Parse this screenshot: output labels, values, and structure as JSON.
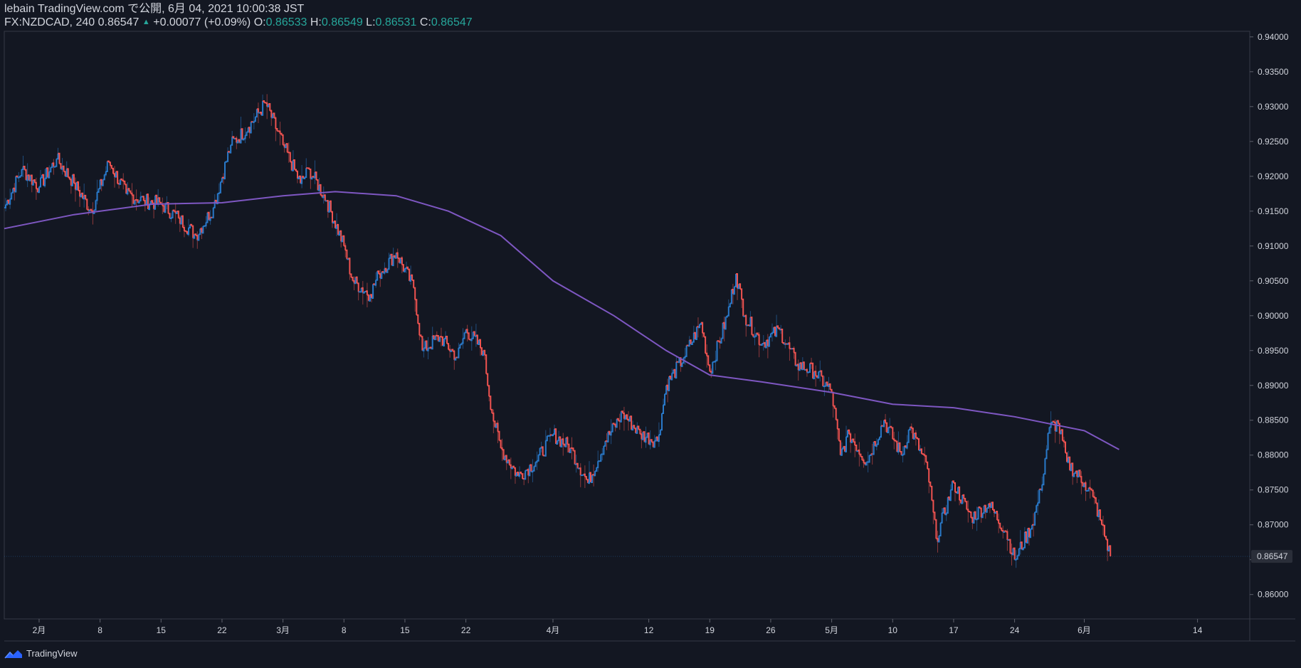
{
  "header": {
    "publisher": "lebain TradingView.com で公開, 6月 04, 2021 10:00:38 JST",
    "symbol": "FX:NZDCAD, 240",
    "last": "0.86547",
    "change": "+0.00077 (+0.09%)",
    "o_label": "O:",
    "o_value": "0.86533",
    "h_label": "H:",
    "h_value": "0.86549",
    "l_label": "L:",
    "l_value": "0.86531",
    "c_label": "C:",
    "c_value": "0.86547"
  },
  "footer": {
    "brand": "TradingView"
  },
  "colors": {
    "background": "#131722",
    "up": "#2979c9",
    "down": "#ef5350",
    "ma": "#7e57c2",
    "change_text": "#26a69a",
    "grid": "#2a2e39"
  },
  "chart_data": {
    "type": "line",
    "y_axis": {
      "range": [
        0.8565,
        0.9408
      ],
      "ticks": [
        0.86,
        0.865,
        0.87,
        0.875,
        0.88,
        0.885,
        0.89,
        0.895,
        0.9,
        0.905,
        0.91,
        0.915,
        0.92,
        0.925,
        0.93,
        0.935,
        0.94
      ],
      "tick_labels": [
        "0.86000",
        "0.86500",
        "0.87000",
        "0.87500",
        "0.88000",
        "0.88500",
        "0.89000",
        "0.89500",
        "0.90000",
        "0.90500",
        "0.91000",
        "0.91500",
        "0.92000",
        "0.92500",
        "0.93000",
        "0.93500",
        "0.94000"
      ],
      "current_price": 0.86547,
      "current_label": "0.86547"
    },
    "x_axis": {
      "range": [
        "2021-01-28",
        "2021-06-20"
      ],
      "ticks": [
        {
          "date": "2021-02-01",
          "label": "2月"
        },
        {
          "date": "2021-02-08",
          "label": "8"
        },
        {
          "date": "2021-02-15",
          "label": "15"
        },
        {
          "date": "2021-02-22",
          "label": "22"
        },
        {
          "date": "2021-03-01",
          "label": "3月"
        },
        {
          "date": "2021-03-08",
          "label": "8"
        },
        {
          "date": "2021-03-15",
          "label": "15"
        },
        {
          "date": "2021-03-22",
          "label": "22"
        },
        {
          "date": "2021-04-01",
          "label": "4月"
        },
        {
          "date": "2021-04-12",
          "label": "12"
        },
        {
          "date": "2021-04-19",
          "label": "19"
        },
        {
          "date": "2021-04-26",
          "label": "26"
        },
        {
          "date": "2021-05-03",
          "label": "5月"
        },
        {
          "date": "2021-05-10",
          "label": "10"
        },
        {
          "date": "2021-05-17",
          "label": "17"
        },
        {
          "date": "2021-05-24",
          "label": "24"
        },
        {
          "date": "2021-06-01",
          "label": "6月"
        },
        {
          "date": "2021-06-14",
          "label": "14"
        }
      ]
    },
    "series": [
      {
        "kind": "price",
        "points": [
          [
            "2021-01-28",
            0.9155
          ],
          [
            "2021-01-30",
            0.921
          ],
          [
            "2021-02-01",
            0.9185
          ],
          [
            "2021-02-03",
            0.9225
          ],
          [
            "2021-02-05",
            0.919
          ],
          [
            "2021-02-07",
            0.915
          ],
          [
            "2021-02-09",
            0.922
          ],
          [
            "2021-02-11",
            0.9175
          ],
          [
            "2021-02-13",
            0.9165
          ],
          [
            "2021-02-15",
            0.916
          ],
          [
            "2021-02-17",
            0.914
          ],
          [
            "2021-02-19",
            0.9115
          ],
          [
            "2021-02-21",
            0.9155
          ],
          [
            "2021-02-23",
            0.9245
          ],
          [
            "2021-02-25",
            0.927
          ],
          [
            "2021-02-27",
            0.9305
          ],
          [
            "2021-03-01",
            0.9245
          ],
          [
            "2021-03-03",
            0.919
          ],
          [
            "2021-03-04",
            0.921
          ],
          [
            "2021-03-06",
            0.9165
          ],
          [
            "2021-03-08",
            0.91
          ],
          [
            "2021-03-09",
            0.905
          ],
          [
            "2021-03-11",
            0.903
          ],
          [
            "2021-03-12",
            0.906
          ],
          [
            "2021-03-14",
            0.909
          ],
          [
            "2021-03-16",
            0.904
          ],
          [
            "2021-03-17",
            0.895
          ],
          [
            "2021-03-19",
            0.897
          ],
          [
            "2021-03-21",
            0.894
          ],
          [
            "2021-03-22",
            0.898
          ],
          [
            "2021-03-24",
            0.895
          ],
          [
            "2021-03-25",
            0.886
          ],
          [
            "2021-03-26",
            0.881
          ],
          [
            "2021-03-28",
            0.877
          ],
          [
            "2021-03-30",
            0.879
          ],
          [
            "2021-04-01",
            0.883
          ],
          [
            "2021-04-03",
            0.881
          ],
          [
            "2021-04-05",
            0.876
          ],
          [
            "2021-04-07",
            0.882
          ],
          [
            "2021-04-09",
            0.886
          ],
          [
            "2021-04-11",
            0.883
          ],
          [
            "2021-04-13",
            0.882
          ],
          [
            "2021-04-14",
            0.89
          ],
          [
            "2021-04-16",
            0.894
          ],
          [
            "2021-04-18",
            0.899
          ],
          [
            "2021-04-19",
            0.892
          ],
          [
            "2021-04-21",
            0.9
          ],
          [
            "2021-04-22",
            0.906
          ],
          [
            "2021-04-23",
            0.9
          ],
          [
            "2021-04-25",
            0.896
          ],
          [
            "2021-04-27",
            0.898
          ],
          [
            "2021-04-29",
            0.893
          ],
          [
            "2021-05-01",
            0.892
          ],
          [
            "2021-05-03",
            0.889
          ],
          [
            "2021-05-04",
            0.88
          ],
          [
            "2021-05-05",
            0.883
          ],
          [
            "2021-05-07",
            0.879
          ],
          [
            "2021-05-09",
            0.885
          ],
          [
            "2021-05-11",
            0.88
          ],
          [
            "2021-05-12",
            0.884
          ],
          [
            "2021-05-14",
            0.878
          ],
          [
            "2021-05-15",
            0.868
          ],
          [
            "2021-05-17",
            0.876
          ],
          [
            "2021-05-19",
            0.871
          ],
          [
            "2021-05-21",
            0.873
          ],
          [
            "2021-05-23",
            0.869
          ],
          [
            "2021-05-24",
            0.865
          ],
          [
            "2021-05-26",
            0.87
          ],
          [
            "2021-05-27",
            0.875
          ],
          [
            "2021-05-28",
            0.884
          ],
          [
            "2021-05-29",
            0.8845
          ],
          [
            "2021-05-30",
            0.879
          ],
          [
            "2021-06-01",
            0.876
          ],
          [
            "2021-06-02",
            0.874
          ],
          [
            "2021-06-03",
            0.87
          ],
          [
            "2021-06-04",
            0.86547
          ]
        ]
      },
      {
        "kind": "moving_average",
        "points": [
          [
            "2021-01-28",
            0.9125
          ],
          [
            "2021-02-05",
            0.9145
          ],
          [
            "2021-02-14",
            0.916
          ],
          [
            "2021-02-22",
            0.9162
          ],
          [
            "2021-03-01",
            0.9172
          ],
          [
            "2021-03-07",
            0.9178
          ],
          [
            "2021-03-14",
            0.9172
          ],
          [
            "2021-03-20",
            0.915
          ],
          [
            "2021-03-26",
            0.9115
          ],
          [
            "2021-04-01",
            0.905
          ],
          [
            "2021-04-08",
            0.9
          ],
          [
            "2021-04-14",
            0.895
          ],
          [
            "2021-04-19",
            0.8915
          ],
          [
            "2021-04-25",
            0.8905
          ],
          [
            "2021-05-03",
            0.889
          ],
          [
            "2021-05-10",
            0.8873
          ],
          [
            "2021-05-17",
            0.8868
          ],
          [
            "2021-05-24",
            0.8855
          ],
          [
            "2021-06-01",
            0.8835
          ],
          [
            "2021-06-05",
            0.8808
          ]
        ]
      }
    ]
  }
}
